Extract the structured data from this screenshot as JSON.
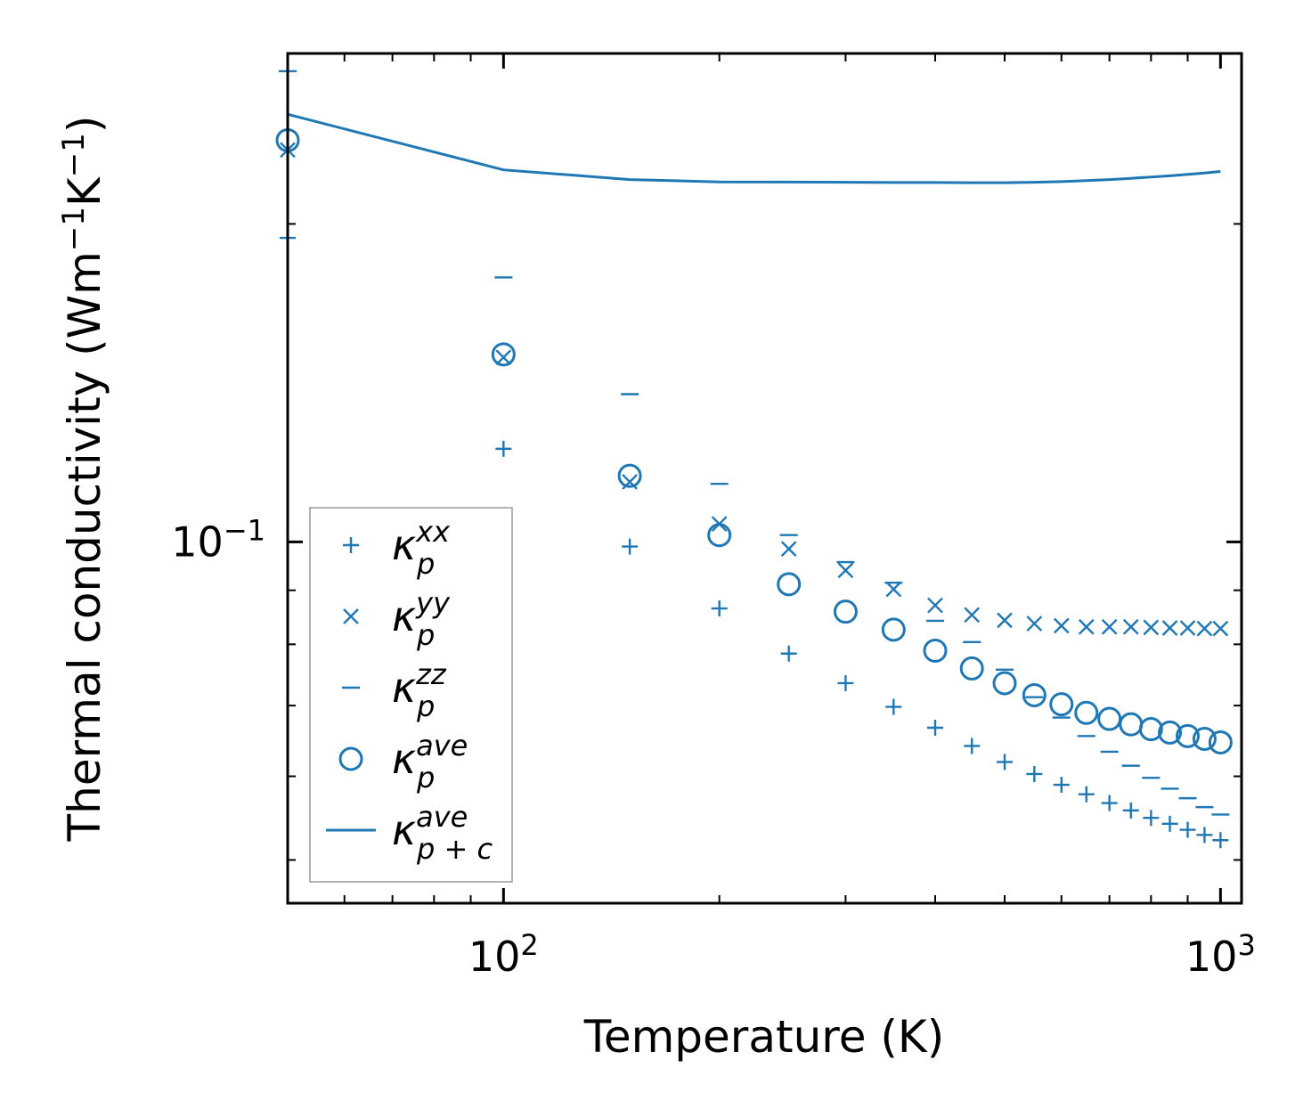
{
  "chart_data": {
    "type": "scatter",
    "xscale": "log",
    "yscale": "log",
    "xlim": [
      50,
      1070
    ],
    "ylim": [
      0.0455,
      0.29
    ],
    "xlabel": "Temperature (K)",
    "ylabel_base": "Thermal conductivity (Wm",
    "ylabel_exp1": "−1",
    "ylabel_mid": "K",
    "ylabel_exp2": "−1",
    "ylabel_end": ")",
    "x_ticks": [
      {
        "value": 100,
        "base": "10",
        "exp": "2"
      },
      {
        "value": 1000,
        "base": "10",
        "exp": "3"
      }
    ],
    "y_ticks": [
      {
        "value": 0.1,
        "base": "10",
        "exp": "−1"
      }
    ],
    "color": "#1f77b4",
    "x": [
      50,
      100,
      150,
      200,
      250,
      300,
      350,
      400,
      450,
      500,
      550,
      600,
      650,
      700,
      750,
      800,
      850,
      900,
      950,
      1000
    ],
    "series": [
      {
        "name": "kappa_p_xx",
        "marker": "plus",
        "legend_base": "κ",
        "legend_sub": "p",
        "legend_sup": "xx",
        "values": [
          0.194,
          0.1225,
          0.099,
          0.0865,
          0.0784,
          0.0735,
          0.0698,
          0.0667,
          0.0641,
          0.0619,
          0.0603,
          0.0589,
          0.0577,
          0.0566,
          0.0557,
          0.0548,
          0.0541,
          0.0534,
          0.0528,
          0.0522
        ]
      },
      {
        "name": "kappa_p_yy",
        "marker": "x",
        "legend_base": "κ",
        "legend_sub": "p",
        "legend_sup": "yy",
        "values": [
          0.235,
          0.1495,
          0.114,
          0.104,
          0.0985,
          0.094,
          0.0902,
          0.0871,
          0.0853,
          0.0843,
          0.0837,
          0.0833,
          0.0831,
          0.0831,
          0.0831,
          0.083,
          0.0829,
          0.0829,
          0.0828,
          0.0828
        ]
      },
      {
        "name": "kappa_p_zz",
        "marker": "hline",
        "legend_base": "κ",
        "legend_sub": "p",
        "legend_sup": "zz",
        "values": [
          0.279,
          0.178,
          0.138,
          0.1135,
          0.1015,
          0.0957,
          0.0915,
          0.0842,
          0.0804,
          0.0757,
          0.0713,
          0.0682,
          0.0655,
          0.0633,
          0.0614,
          0.0598,
          0.0584,
          0.0572,
          0.0561,
          0.0552
        ]
      },
      {
        "name": "kappa_p_ave",
        "marker": "circle",
        "legend_base": "κ",
        "legend_sub": "p",
        "legend_sup": "ave",
        "values": [
          0.24,
          0.1505,
          0.1155,
          0.1015,
          0.0912,
          0.0859,
          0.0826,
          0.0789,
          0.0759,
          0.0735,
          0.0716,
          0.0702,
          0.0689,
          0.068,
          0.0672,
          0.0665,
          0.066,
          0.0655,
          0.0651,
          0.0646
        ]
      },
      {
        "name": "kappa_p+c_ave",
        "marker": "line",
        "legend_base": "κ",
        "legend_sub": "p + c",
        "legend_sup": "ave",
        "values": [
          0.254,
          0.225,
          0.2203,
          0.2192,
          0.2191,
          0.219,
          0.2189,
          0.2189,
          0.2188,
          0.2188,
          0.219,
          0.2193,
          0.2198,
          0.2203,
          0.2209,
          0.2215,
          0.2221,
          0.2228,
          0.2235,
          0.2242
        ]
      }
    ],
    "legend_position": "lower-left"
  }
}
